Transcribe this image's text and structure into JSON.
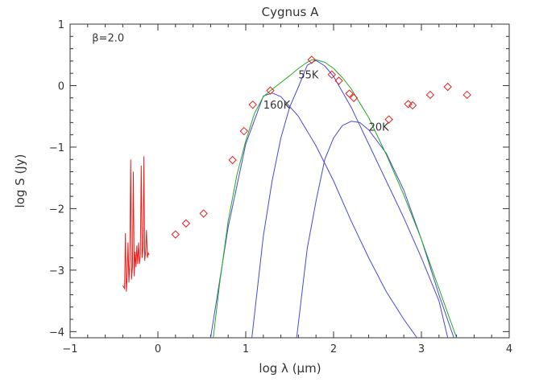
{
  "chart_data": {
    "type": "scatter",
    "title": "Cygnus A",
    "xlabel": "log λ (μm)",
    "ylabel": "log S (Jy)",
    "xlim": [
      -1,
      4
    ],
    "ylim": [
      -4.1,
      1
    ],
    "grid": false,
    "x_ticks": [
      -1,
      0,
      1,
      2,
      3,
      4
    ],
    "y_ticks": [
      -4,
      -3,
      -2,
      -1,
      0,
      1
    ],
    "x_tick_labels": [
      "−1",
      "0",
      "1",
      "2",
      "3",
      "4"
    ],
    "y_tick_labels": [
      "−4",
      "−3",
      "−2",
      "−1",
      "0",
      "1"
    ],
    "annotations": [
      {
        "text": "β=2.0",
        "x": -0.75,
        "y": 0.72
      },
      {
        "text": "55K",
        "x": 1.6,
        "y": 0.12
      },
      {
        "text": "160K",
        "x": 1.2,
        "y": -0.37
      },
      {
        "text": "20K",
        "x": 2.4,
        "y": -0.73
      }
    ],
    "colors": {
      "points": "#e8201c",
      "spectrum": "#e8201c",
      "components": "#4848d8",
      "total": "#22aa22"
    },
    "series": [
      {
        "kind": "points",
        "x": [
          0.2,
          0.32,
          0.52,
          0.85,
          0.98,
          1.08,
          1.28,
          1.75,
          1.98,
          2.06,
          2.18,
          2.23,
          2.63,
          2.85,
          2.9,
          3.1,
          3.3,
          3.52
        ],
        "y": [
          -2.42,
          -2.24,
          -2.08,
          -1.21,
          -0.74,
          -0.31,
          -0.08,
          0.42,
          0.18,
          0.08,
          -0.13,
          -0.2,
          -0.55,
          -0.3,
          -0.32,
          -0.15,
          -0.02,
          -0.15
        ]
      },
      {
        "kind": "spectrum",
        "x": [
          -0.4,
          -0.38,
          -0.37,
          -0.36,
          -0.35,
          -0.34,
          -0.33,
          -0.32,
          -0.31,
          -0.3,
          -0.29,
          -0.28,
          -0.27,
          -0.26,
          -0.25,
          -0.24,
          -0.23,
          -0.22,
          -0.21,
          -0.2,
          -0.19,
          -0.18,
          -0.17,
          -0.16,
          -0.15,
          -0.14,
          -0.13,
          -0.12,
          -0.11,
          -0.1
        ],
        "y": [
          -3.25,
          -3.3,
          -2.4,
          -3.35,
          -3.1,
          -2.55,
          -3.2,
          -2.85,
          -1.2,
          -3.15,
          -2.95,
          -1.4,
          -3.1,
          -2.7,
          -2.95,
          -2.6,
          -2.9,
          -2.55,
          -2.9,
          -2.75,
          -1.3,
          -2.8,
          -2.65,
          -1.15,
          -2.85,
          -2.7,
          -2.35,
          -2.8,
          -2.72,
          -2.75
        ]
      },
      {
        "kind": "model",
        "role": "component",
        "label": "160K",
        "x": [
          0.6,
          0.8,
          1.0,
          1.2,
          1.3,
          1.4,
          1.6,
          1.8,
          2.0,
          2.2,
          2.4,
          2.6,
          2.8,
          2.95
        ],
        "y": [
          -4.1,
          -2.3,
          -0.95,
          -0.17,
          -0.12,
          -0.18,
          -0.5,
          -0.98,
          -1.55,
          -2.2,
          -2.8,
          -3.35,
          -3.8,
          -4.1
        ]
      },
      {
        "kind": "model",
        "role": "component",
        "label": "55K",
        "x": [
          1.07,
          1.2,
          1.3,
          1.4,
          1.5,
          1.6,
          1.7,
          1.8,
          1.9,
          2.0,
          2.2,
          2.4,
          2.6,
          2.8,
          3.0,
          3.2,
          3.3
        ],
        "y": [
          -4.1,
          -2.45,
          -1.55,
          -0.85,
          -0.35,
          -0.02,
          0.33,
          0.41,
          0.32,
          0.15,
          -0.35,
          -0.95,
          -1.55,
          -2.15,
          -2.8,
          -3.5,
          -4.1
        ]
      },
      {
        "kind": "model",
        "role": "component",
        "label": "20K",
        "x": [
          1.58,
          1.7,
          1.8,
          1.9,
          2.0,
          2.1,
          2.2,
          2.3,
          2.4,
          2.6,
          2.8,
          3.0,
          3.2,
          3.37
        ],
        "y": [
          -4.1,
          -2.65,
          -1.88,
          -1.2,
          -0.85,
          -0.65,
          -0.58,
          -0.6,
          -0.72,
          -1.1,
          -1.7,
          -2.5,
          -3.4,
          -4.1
        ]
      },
      {
        "kind": "model",
        "role": "total",
        "x": [
          0.63,
          0.7,
          0.8,
          0.9,
          1.0,
          1.1,
          1.2,
          1.3,
          1.4,
          1.5,
          1.6,
          1.7,
          1.75,
          1.8,
          1.9,
          2.0,
          2.1,
          2.2,
          2.4,
          2.6,
          2.8,
          3.0,
          3.2,
          3.4
        ],
        "y": [
          -4.1,
          -3.25,
          -2.2,
          -1.45,
          -0.9,
          -0.45,
          -0.18,
          -0.06,
          0.05,
          0.16,
          0.28,
          0.38,
          0.42,
          0.42,
          0.38,
          0.28,
          0.13,
          -0.05,
          -0.52,
          -1.12,
          -1.78,
          -2.5,
          -3.3,
          -4.1
        ]
      }
    ]
  }
}
